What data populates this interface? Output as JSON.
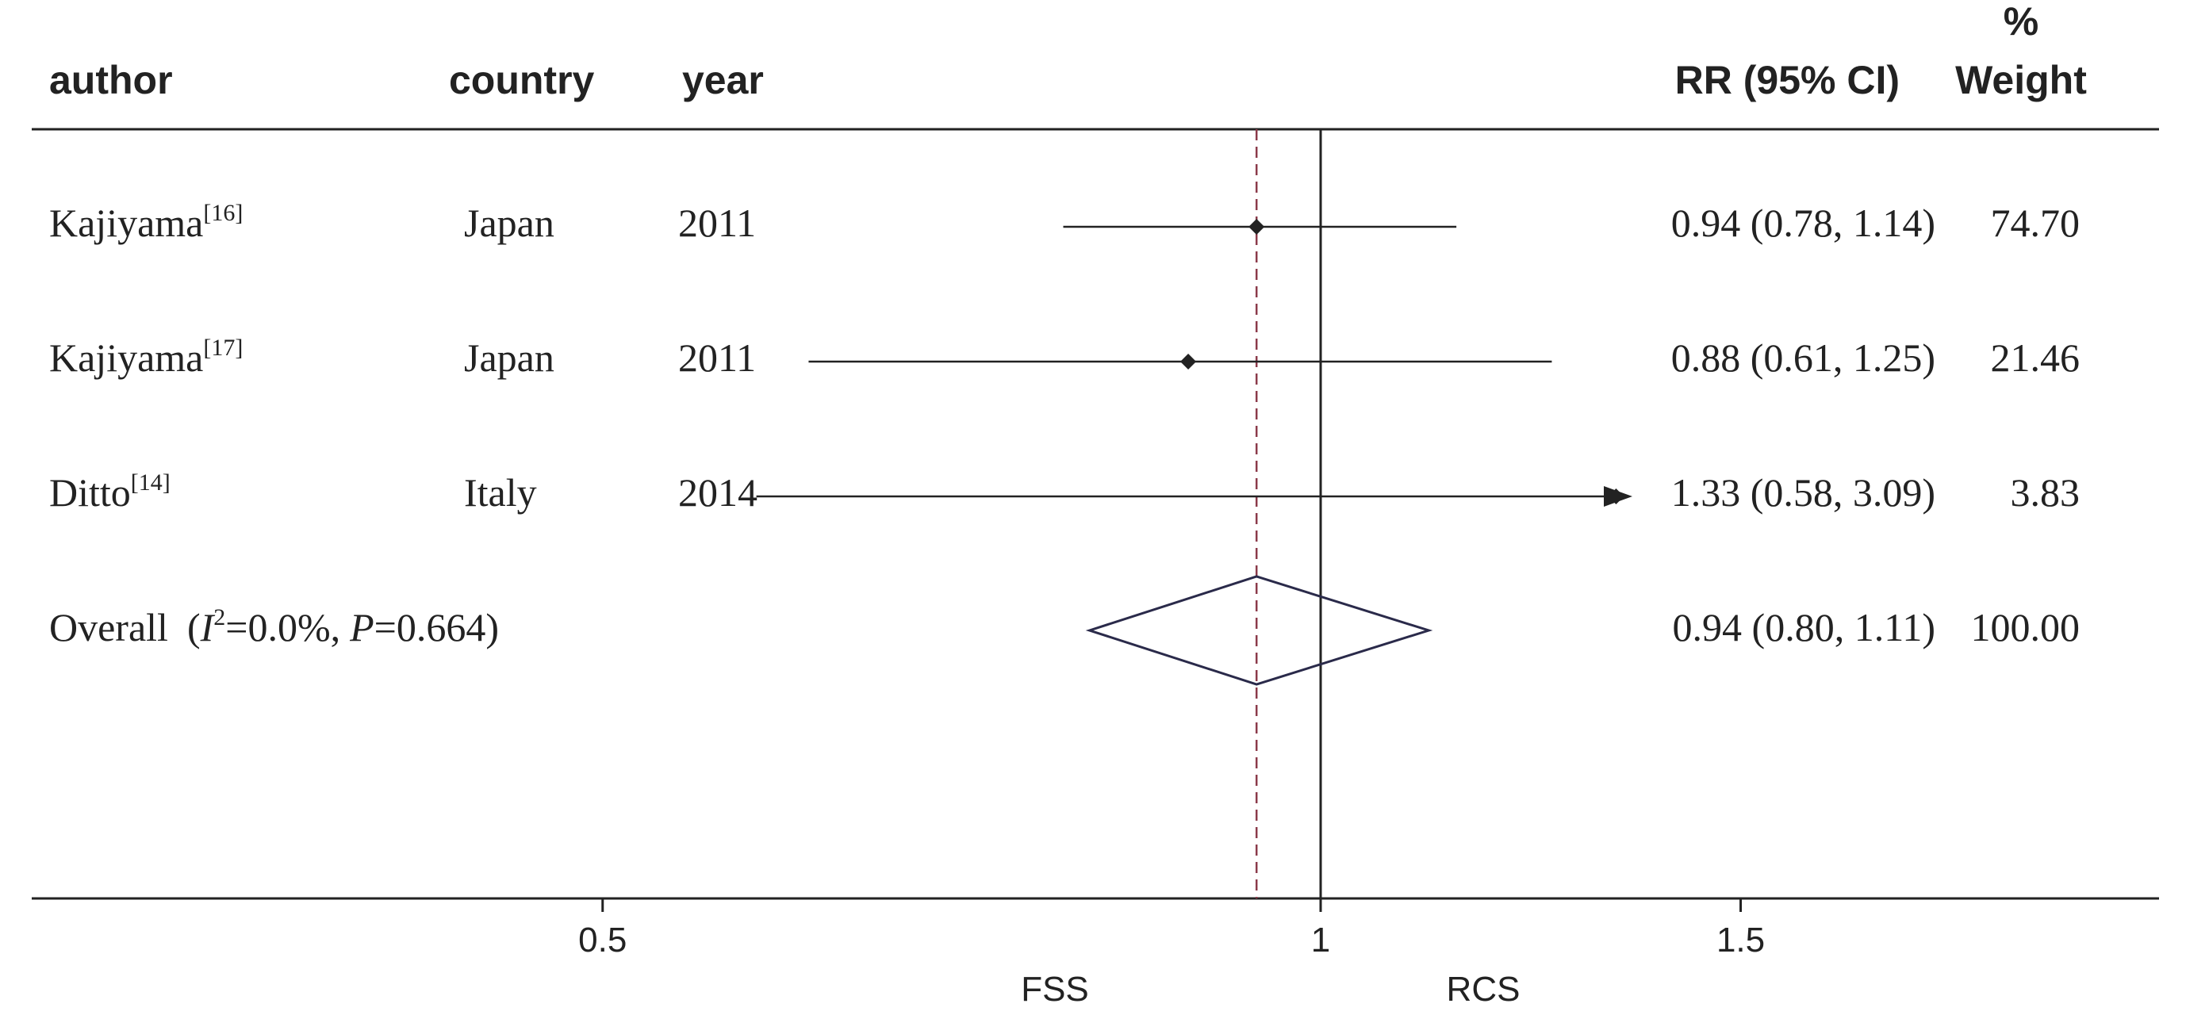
{
  "chart_data": {
    "type": "forest",
    "columns": {
      "author": "author",
      "country": "country",
      "year": "year",
      "rr": "RR (95% CI)",
      "weight_top": "%",
      "weight_bottom": "Weight"
    },
    "studies": [
      {
        "author": "Kajiyama",
        "ref": "[16]",
        "country": "Japan",
        "year": "2011",
        "rr": 0.94,
        "lower": 0.78,
        "upper": 1.14,
        "ci_text": "0.94 (0.78, 1.14)",
        "weight": "74.70"
      },
      {
        "author": "Kajiyama",
        "ref": "[17]",
        "country": "Japan",
        "year": "2011",
        "rr": 0.88,
        "lower": 0.61,
        "upper": 1.25,
        "ci_text": "0.88 (0.61, 1.25)",
        "weight": "21.46"
      },
      {
        "author": "Ditto",
        "ref": "[14]",
        "country": "Italy",
        "year": "2014",
        "rr": 1.33,
        "lower": 0.58,
        "upper": 3.09,
        "ci_text": "1.33 (0.58, 3.09)",
        "weight": "3.83",
        "arrow_right": true
      }
    ],
    "overall": {
      "label": "Overall",
      "i2_value": "=0.0%,",
      "p_value": "=0.664)",
      "rr": 0.94,
      "lower": 0.8,
      "upper": 1.11,
      "ci_text": "0.94 (0.80, 1.11)",
      "weight": "100.00"
    },
    "x_axis": {
      "ticks": [
        0.5,
        1,
        1.5
      ],
      "tick_labels": [
        "0.5",
        "1",
        "1.5"
      ],
      "null_line": 1,
      "left_label": "FSS",
      "right_label": "RCS"
    },
    "colors": {
      "line": "#222222",
      "diamond": "#2a2a4a",
      "dashed": "#8b3a4a"
    }
  }
}
